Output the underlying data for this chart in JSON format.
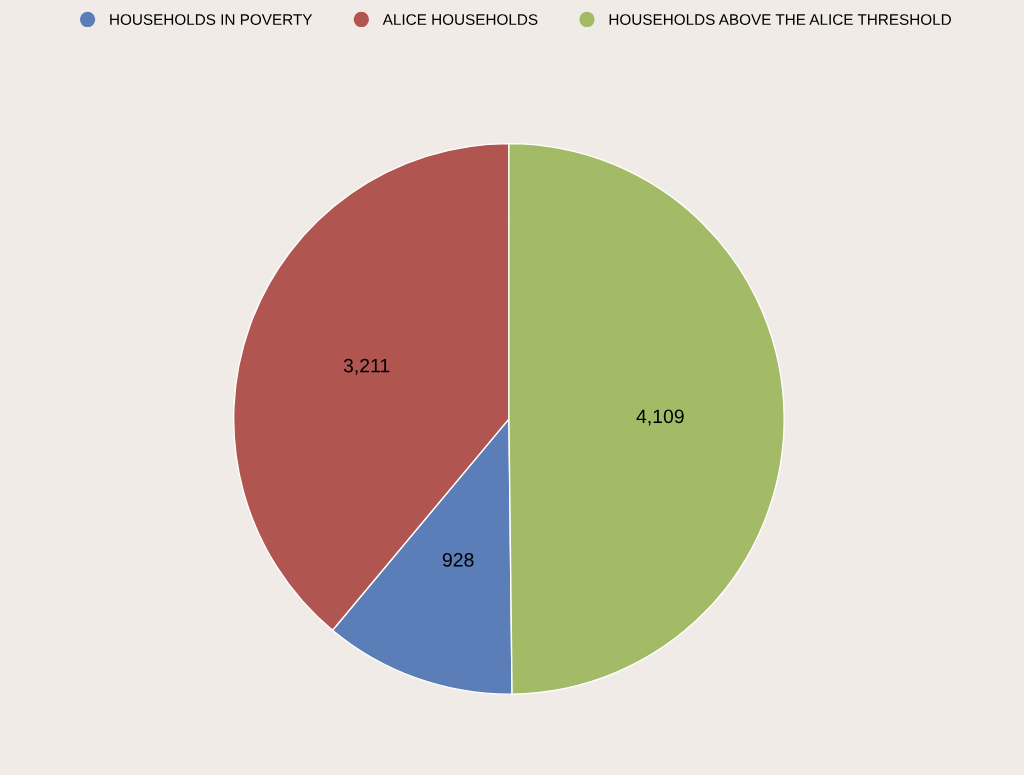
{
  "chart_data": {
    "type": "pie",
    "categories": [
      "HOUSEHOLDS IN POVERTY",
      "ALICE HOUSEHOLDS",
      "HOUSEHOLDS ABOVE THE ALICE THRESHOLD"
    ],
    "values": [
      928,
      3211,
      4109
    ],
    "value_labels": [
      "928",
      "3,211",
      "4,109"
    ],
    "colors": [
      "#5b7db8",
      "#b05550",
      "#a3bb66"
    ],
    "legend": "top"
  }
}
